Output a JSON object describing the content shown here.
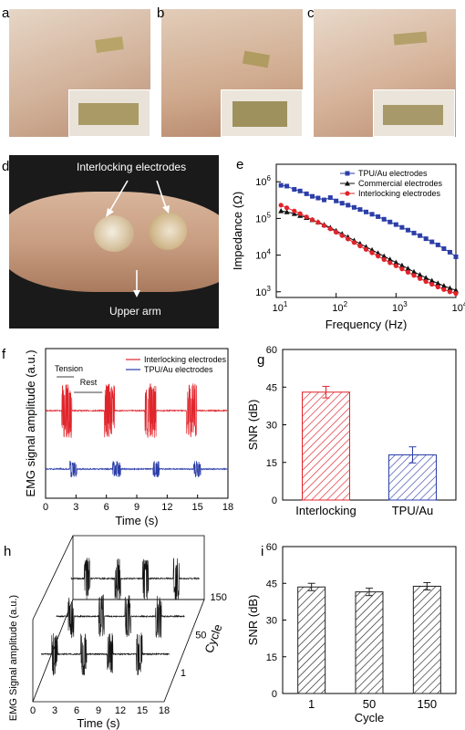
{
  "panel_labels": {
    "a": "a",
    "b": "b",
    "c": "c",
    "d": "d",
    "e": "e",
    "f": "f",
    "g": "g",
    "h": "h",
    "i": "i"
  },
  "photo_d": {
    "electrodes_label": "Interlocking electrodes",
    "arm_label": "Upper arm"
  },
  "colors": {
    "tpu": "#2c3ea8",
    "commercial": "#111111",
    "interlocking": "#e0242b"
  },
  "chart_data": [
    {
      "id": "e",
      "type": "line",
      "xscale": "log",
      "yscale": "log",
      "xlabel": "Frequency (Hz)",
      "ylabel": "Impedance (Ω)",
      "xlim": [
        10,
        10000
      ],
      "ylim": [
        700,
        3000000
      ],
      "xticks": [
        "10^1",
        "10^2",
        "10^3",
        "10^4"
      ],
      "yticks": [
        "10^3",
        "10^4",
        "10^5",
        "10^6"
      ],
      "legend_position": "top-right",
      "series": [
        {
          "name": "TPU/Au electrodes",
          "marker": "square",
          "color": "#2c3ea8",
          "x": [
            12,
            15,
            20,
            25,
            32,
            40,
            50,
            63,
            80,
            100,
            126,
            158,
            200,
            251,
            316,
            398,
            501,
            631,
            794,
            1000,
            1259,
            1585,
            1995,
            2512,
            3162,
            3981,
            5012,
            6310,
            7943,
            10000
          ],
          "y": [
            800000,
            760000,
            620000,
            560000,
            470000,
            400000,
            360000,
            320000,
            370000,
            300000,
            260000,
            230000,
            200000,
            175000,
            150000,
            130000,
            112000,
            95000,
            80000,
            68000,
            57000,
            48000,
            40000,
            34000,
            28000,
            23000,
            19000,
            15000,
            12000,
            9000
          ]
        },
        {
          "name": "Commercial electrodes",
          "marker": "triangle",
          "color": "#111111",
          "x": [
            12,
            15,
            20,
            25,
            32,
            40,
            50,
            63,
            80,
            100,
            126,
            158,
            200,
            251,
            316,
            398,
            501,
            631,
            794,
            1000,
            1259,
            1585,
            1995,
            2512,
            3162,
            3981,
            5012,
            6310,
            7943,
            10000
          ],
          "y": [
            160000,
            150000,
            135000,
            120000,
            105000,
            92000,
            80000,
            67000,
            56000,
            46000,
            38000,
            31000,
            25000,
            20500,
            16800,
            13800,
            11300,
            9300,
            7600,
            6300,
            5200,
            4300,
            3500,
            2900,
            2400,
            2000,
            1700,
            1450,
            1250,
            1100
          ]
        },
        {
          "name": "Interlocking electrodes",
          "marker": "circle",
          "color": "#e0242b",
          "x": [
            12,
            15,
            20,
            25,
            32,
            40,
            50,
            63,
            80,
            100,
            126,
            158,
            200,
            251,
            316,
            398,
            501,
            631,
            794,
            1000,
            1259,
            1585,
            1995,
            2512,
            3162,
            3981,
            5012,
            6310,
            7943,
            10000
          ],
          "y": [
            230000,
            195000,
            160000,
            135000,
            110000,
            92000,
            78000,
            64000,
            52000,
            42000,
            34000,
            27500,
            22000,
            17800,
            14300,
            11600,
            9400,
            7600,
            6200,
            5100,
            4200,
            3400,
            2800,
            2300,
            1900,
            1600,
            1350,
            1150,
            1000,
            900
          ]
        }
      ]
    },
    {
      "id": "f",
      "type": "line",
      "xlabel": "Time (s)",
      "ylabel": "EMG signal amplitude (a.u.)",
      "xlim": [
        0,
        18
      ],
      "xticks": [
        0,
        3,
        6,
        9,
        12,
        15,
        18
      ],
      "annotations": [
        "Tension",
        "Rest"
      ],
      "legend_position": "top-right",
      "series": [
        {
          "name": "Interlocking electrodes",
          "color": "#e0242b",
          "bursts": [
            [
              1.6,
              2.6
            ],
            [
              5.8,
              6.8
            ],
            [
              9.8,
              10.9
            ],
            [
              13.9,
              14.9
            ]
          ],
          "amplitude": 1.0
        },
        {
          "name": "TPU/Au electrodes",
          "color": "#2c3ea8",
          "bursts": [
            [
              2.4,
              3.1
            ],
            [
              6.6,
              7.4
            ],
            [
              10.6,
              11.2
            ],
            [
              14.6,
              15.3
            ]
          ],
          "amplitude": 0.35
        }
      ]
    },
    {
      "id": "g",
      "type": "bar",
      "categories": [
        "Interlocking",
        "TPU/Au"
      ],
      "values": [
        43,
        18
      ],
      "errors": [
        2.3,
        3.2
      ],
      "ylabel": "SNR (dB)",
      "ylim": [
        0,
        60
      ],
      "yticks": [
        0,
        15,
        30,
        45,
        60
      ],
      "colors": [
        "#e0242b",
        "#2c3ea8"
      ]
    },
    {
      "id": "h",
      "type": "line",
      "xlabel": "Time (s)",
      "ylabel": "EMG Signal amplitude (a.u.)",
      "zlabel": "Cycle",
      "xticks": [
        0,
        3,
        6,
        9,
        12,
        15,
        18
      ],
      "zticks": [
        "1",
        "50",
        "150"
      ],
      "series": [
        {
          "name": "Cycle 1",
          "bursts": [
            [
              1.6,
              2.4
            ],
            [
              5.6,
              6.4
            ],
            [
              9.2,
              10.0
            ],
            [
              13.2,
              14.0
            ]
          ]
        },
        {
          "name": "Cycle 50",
          "bursts": [
            [
              1.8,
              2.6
            ],
            [
              6.0,
              6.8
            ],
            [
              9.6,
              10.4
            ],
            [
              13.8,
              14.6
            ]
          ]
        },
        {
          "name": "Cycle 150",
          "bursts": [
            [
              2.0,
              2.8
            ],
            [
              6.2,
              7.0
            ],
            [
              10.0,
              10.8
            ],
            [
              14.2,
              15.0
            ]
          ]
        }
      ]
    },
    {
      "id": "i",
      "type": "bar",
      "categories": [
        "1",
        "50",
        "150"
      ],
      "values": [
        43.5,
        41.5,
        43.8
      ],
      "errors": [
        1.5,
        1.5,
        1.5
      ],
      "xlabel": "Cycle",
      "ylabel": "SNR (dB)",
      "ylim": [
        0,
        60
      ],
      "yticks": [
        0,
        15,
        30,
        45,
        60
      ]
    }
  ]
}
